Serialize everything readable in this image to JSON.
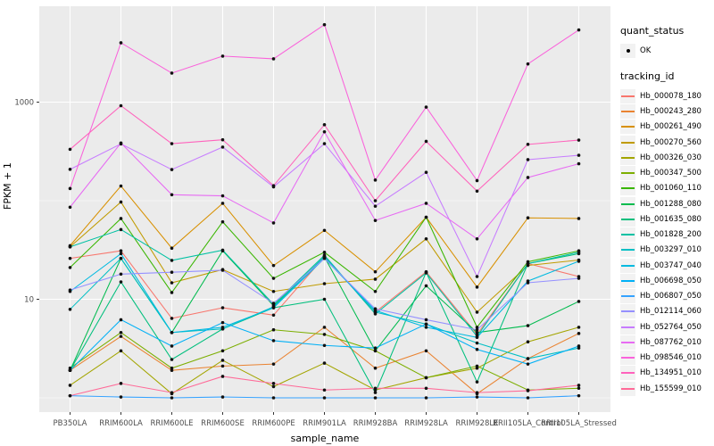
{
  "figure": {
    "panel_background": "#EBEBEB",
    "grid_color": "#FFFFFF",
    "axis_text_color": "#4D4D4D",
    "tick_color": "#333333",
    "point_color": "#111111",
    "legend_key_fill": "#F2F2F2"
  },
  "legend": {
    "quant_status": {
      "title": "quant_status",
      "items": [
        {
          "label": "OK",
          "symbol": "point-icon",
          "color": "#000000"
        }
      ]
    },
    "tracking_id": {
      "title": "tracking_id"
    }
  },
  "chart_data": {
    "type": "line",
    "title": "",
    "xlabel": "sample_name",
    "ylabel": "FPKM + 1",
    "y_scale": "log10",
    "ylim": [
      0.9,
      7000
    ],
    "y_major_ticks": [
      10,
      1000
    ],
    "y_major_tick_labels": [
      "10",
      "1000"
    ],
    "y_minor_gridlines": [
      1,
      100
    ],
    "grid": "on",
    "legend_position": "right",
    "marker": "black-point",
    "categories": [
      "PB350LA",
      "RRIM600LA",
      "RRIM600LE",
      "RRIM600SE",
      "RRIM600PE",
      "RRIM901LA",
      "RRIM928BA",
      "RRIM928LA",
      "RRIM928LE",
      "RRII105LA_Control",
      "RRII105LA_Stressed"
    ],
    "series": [
      {
        "name": "Hb_000078_180",
        "color": "#F8766D",
        "values": [
          26,
          31,
          6.4,
          8.2,
          6.9,
          27,
          7.4,
          19,
          4.4,
          23,
          17
        ]
      },
      {
        "name": "Hb_000243_280",
        "color": "#EA8331",
        "values": [
          1.9,
          4.2,
          1.9,
          2.1,
          2.2,
          5.2,
          2.0,
          3.0,
          1.1,
          2.5,
          4.5
        ]
      },
      {
        "name": "Hb_000261_490",
        "color": "#D89000",
        "values": [
          35,
          141,
          33,
          94,
          22,
          50,
          19,
          68,
          13.3,
          67,
          66
        ]
      },
      {
        "name": "Hb_000270_560",
        "color": "#C09B00",
        "values": [
          34,
          97,
          14.7,
          20,
          12,
          14.4,
          16,
          41,
          7.4,
          22,
          25
        ]
      },
      {
        "name": "Hb_000326_030",
        "color": "#A3A500",
        "values": [
          1.34,
          3.0,
          1.1,
          2.4,
          1.3,
          2.25,
          1.2,
          1.6,
          2.0,
          3.7,
          5.2
        ]
      },
      {
        "name": "Hb_000347_500",
        "color": "#7CAE00",
        "values": [
          2.0,
          4.6,
          2.0,
          3.0,
          4.9,
          4.4,
          3.0,
          1.6,
          2.1,
          1.2,
          1.25
        ]
      },
      {
        "name": "Hb_001060_110",
        "color": "#39B600",
        "values": [
          21,
          66,
          11.7,
          61,
          16.3,
          30,
          12,
          68,
          5.2,
          24,
          31
        ]
      },
      {
        "name": "Hb_001288_080",
        "color": "#00BB4E",
        "values": [
          1.9,
          26,
          4.6,
          31,
          8.6,
          27,
          3.0,
          13.7,
          4.6,
          5.4,
          9.5
        ]
      },
      {
        "name": "Hb_001635_080",
        "color": "#00BF7D",
        "values": [
          1.9,
          15,
          2.45,
          5.0,
          8.2,
          10,
          1.13,
          18.8,
          1.45,
          23,
          29
        ]
      },
      {
        "name": "Hb_001828_200",
        "color": "#00C1A3",
        "values": [
          34,
          51,
          24.8,
          31.5,
          8.9,
          28,
          7.1,
          18.5,
          4.2,
          23,
          30
        ]
      },
      {
        "name": "Hb_003297_010",
        "color": "#00BFC4",
        "values": [
          7.9,
          26,
          4.6,
          5.0,
          8.4,
          27,
          7.4,
          5.6,
          3.6,
          2.5,
          3.2
        ]
      },
      {
        "name": "Hb_003747_040",
        "color": "#00BAE0",
        "values": [
          12,
          29,
          4.6,
          5.2,
          8.2,
          26,
          7.7,
          5.2,
          4.1,
          15.3,
          24.3
        ]
      },
      {
        "name": "Hb_006698_050",
        "color": "#00B0F6",
        "values": [
          1.9,
          6.2,
          3.35,
          5.8,
          3.8,
          3.4,
          3.2,
          5.6,
          3.1,
          2.2,
          3.35
        ]
      },
      {
        "name": "Hb_006807_050",
        "color": "#35A2FF",
        "values": [
          1.05,
          1.02,
          1.0,
          1.02,
          1.0,
          1.0,
          1.0,
          1.0,
          1.02,
          1.0,
          1.05
        ]
      },
      {
        "name": "Hb_012114_060",
        "color": "#9590FF",
        "values": [
          12.4,
          18,
          18.8,
          19.7,
          9.1,
          26,
          8,
          6.2,
          4.9,
          14.7,
          16.3
        ]
      },
      {
        "name": "Hb_052764_050",
        "color": "#C77CFF",
        "values": [
          208,
          377,
          207,
          350,
          138,
          379,
          88,
          194,
          17,
          261,
          289
        ]
      },
      {
        "name": "Hb_087762_010",
        "color": "#E76BF3",
        "values": [
          86,
          385,
          115,
          112,
          59.5,
          500,
          63,
          94,
          41,
          172,
          237
        ]
      },
      {
        "name": "Hb_098546_010",
        "color": "#FA62DB",
        "values": [
          133,
          4000,
          1970,
          2930,
          2750,
          6100,
          162,
          890,
          160,
          2440,
          5400
        ]
      },
      {
        "name": "Hb_134951_010",
        "color": "#FF62BC",
        "values": [
          332,
          920,
          379,
          415,
          142,
          590,
          100,
          400,
          125,
          373,
          412
        ]
      },
      {
        "name": "Hb_155599_010",
        "color": "#FF6A98",
        "values": [
          1.05,
          1.4,
          1.13,
          1.65,
          1.4,
          1.2,
          1.25,
          1.25,
          1.13,
          1.18,
          1.34
        ]
      }
    ]
  }
}
